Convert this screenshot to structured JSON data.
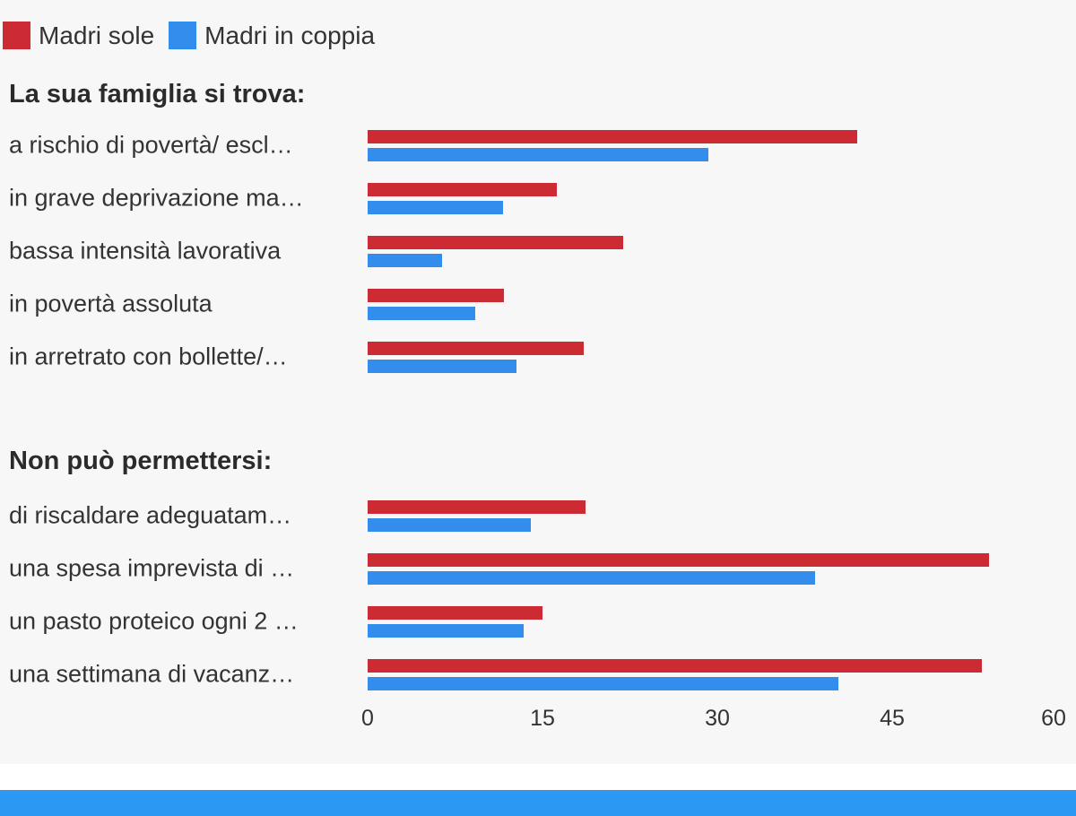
{
  "colors": {
    "background": "#f7f7f8",
    "madri_sole": "#cd2b33",
    "madri_in_coppia": "#338dec",
    "text": "#333333",
    "header_text": "#2b2b2b",
    "bottom_band_blue": "#2b99f3",
    "bottom_band_white": "#ffffff"
  },
  "legend": {
    "items": [
      {
        "label": "Madri sole",
        "color": "#cd2b33"
      },
      {
        "label": "Madri in coppia",
        "color": "#338dec"
      }
    ]
  },
  "chart_data": {
    "type": "bar",
    "orientation": "horizontal",
    "series_names": [
      "Madri sole",
      "Madri in coppia"
    ],
    "axis": {
      "min": 0,
      "max": 60,
      "ticks": [
        "0",
        "15",
        "30",
        "45",
        "60"
      ]
    },
    "legend_position": "top-left",
    "grid": false,
    "groups": [
      {
        "title": "La sua famiglia si trova:",
        "rows": [
          {
            "label": "a rischio di povertà/ escl…",
            "values": [
              42.0,
              29.2
            ]
          },
          {
            "label": "in grave deprivazione ma…",
            "values": [
              16.2,
              11.6
            ]
          },
          {
            "label": "bassa intensità lavorativa",
            "values": [
              21.9,
              6.4
            ]
          },
          {
            "label": "in povertà assoluta",
            "values": [
              11.7,
              9.2
            ]
          },
          {
            "label": "in arretrato con bollette/…",
            "values": [
              18.5,
              12.8
            ]
          }
        ]
      },
      {
        "title": "Non può permettersi:",
        "rows": [
          {
            "label": "di riscaldare adeguatam…",
            "values": [
              18.7,
              14.0
            ]
          },
          {
            "label": "una spesa imprevista di …",
            "values": [
              53.3,
              38.4
            ]
          },
          {
            "label": "un pasto proteico ogni 2 …",
            "values": [
              15.0,
              13.4
            ]
          },
          {
            "label": "una settimana di vacanz…",
            "values": [
              52.7,
              40.4
            ]
          }
        ]
      }
    ]
  }
}
